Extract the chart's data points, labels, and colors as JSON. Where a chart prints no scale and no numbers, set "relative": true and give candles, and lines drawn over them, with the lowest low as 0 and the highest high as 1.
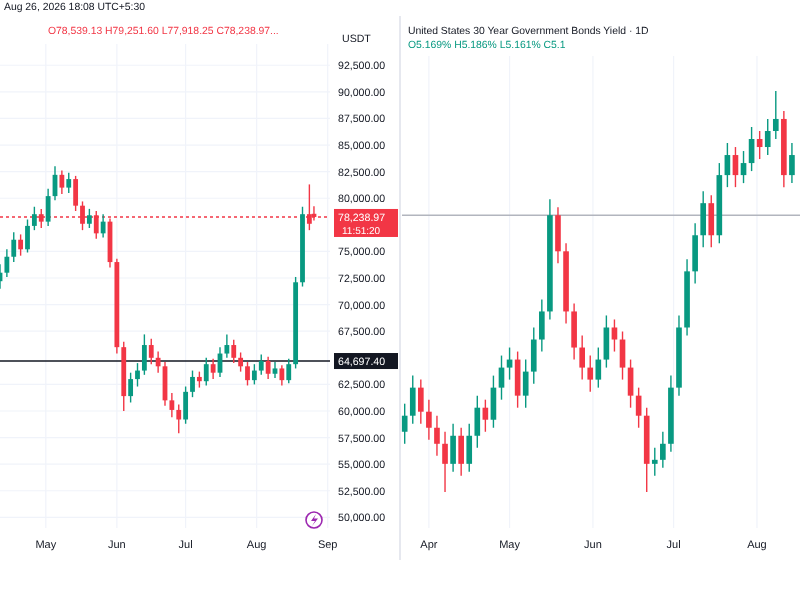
{
  "chart_data": [
    {
      "type": "candlestick",
      "subtitle": "O78,539.13 H79,251.60 L77,918.25 C78,238.97...",
      "ylabel": "USDT",
      "annotations": [
        "Aug 26, 2026 18:08 UTC+5:30",
        "11:51:20"
      ],
      "x": [
        "2026-04-11",
        "2026-04-14",
        "2026-04-17",
        "2026-04-20",
        "2026-04-23",
        "2026-04-26",
        "2026-04-29",
        "2026-05-02",
        "2026-05-05",
        "2026-05-08",
        "2026-05-11",
        "2026-05-14",
        "2026-05-17",
        "2026-05-20",
        "2026-05-23",
        "2026-05-26",
        "2026-05-29",
        "2026-06-01",
        "2026-06-04",
        "2026-06-07",
        "2026-06-10",
        "2026-06-13",
        "2026-06-16",
        "2026-06-19",
        "2026-06-22",
        "2026-06-25",
        "2026-06-28",
        "2026-07-01",
        "2026-07-04",
        "2026-07-07",
        "2026-07-10",
        "2026-07-13",
        "2026-07-16",
        "2026-07-19",
        "2026-07-22",
        "2026-07-25",
        "2026-07-28",
        "2026-07-31",
        "2026-08-03",
        "2026-08-06",
        "2026-08-09",
        "2026-08-12",
        "2026-08-15",
        "2026-08-18",
        "2026-08-21",
        "2026-08-24",
        "2026-08-26"
      ],
      "ohlc": [
        [
          72200,
          73800,
          71500,
          73000
        ],
        [
          73000,
          75200,
          72600,
          74500
        ],
        [
          74500,
          76800,
          74000,
          76100
        ],
        [
          76100,
          76600,
          74600,
          75200
        ],
        [
          75200,
          78000,
          74900,
          77400
        ],
        [
          77400,
          79200,
          77000,
          78500
        ],
        [
          78500,
          79000,
          77200,
          77800
        ],
        [
          77800,
          80900,
          77400,
          80200
        ],
        [
          80200,
          83000,
          79800,
          82200
        ],
        [
          82200,
          82600,
          80400,
          81000
        ],
        [
          81000,
          82400,
          80500,
          81800
        ],
        [
          81800,
          82100,
          78800,
          79300
        ],
        [
          79300,
          79700,
          77000,
          77600
        ],
        [
          77600,
          79000,
          77200,
          78400
        ],
        [
          78400,
          78800,
          76200,
          76700
        ],
        [
          76700,
          78500,
          76300,
          77800
        ],
        [
          77800,
          78100,
          73500,
          74000
        ],
        [
          74000,
          74300,
          65400,
          66000
        ],
        [
          66000,
          66500,
          60000,
          61400
        ],
        [
          61400,
          63600,
          60800,
          63000
        ],
        [
          63000,
          64500,
          62300,
          63800
        ],
        [
          63800,
          67200,
          63400,
          66200
        ],
        [
          66200,
          66800,
          64400,
          65000
        ],
        [
          65000,
          65600,
          63600,
          64200
        ],
        [
          64200,
          64600,
          60500,
          61000
        ],
        [
          61000,
          61700,
          59400,
          60100
        ],
        [
          60100,
          60600,
          57900,
          59200
        ],
        [
          59200,
          62300,
          58800,
          61800
        ],
        [
          61800,
          63800,
          61300,
          63200
        ],
        [
          63200,
          63700,
          62200,
          62800
        ],
        [
          62800,
          65000,
          62400,
          64400
        ],
        [
          64400,
          64900,
          63000,
          63600
        ],
        [
          63600,
          66000,
          63200,
          65400
        ],
        [
          65400,
          67200,
          65000,
          66200
        ],
        [
          66200,
          66700,
          64500,
          65000
        ],
        [
          65000,
          65500,
          63700,
          64200
        ],
        [
          64200,
          64600,
          62400,
          62900
        ],
        [
          62900,
          64400,
          62500,
          63800
        ],
        [
          63800,
          65300,
          63400,
          64700
        ],
        [
          64700,
          65100,
          63000,
          63500
        ],
        [
          63500,
          64600,
          63100,
          64000
        ],
        [
          64000,
          64300,
          62400,
          62900
        ],
        [
          62900,
          64900,
          62600,
          64400
        ],
        [
          64400,
          72600,
          64000,
          72100
        ],
        [
          72100,
          79200,
          71700,
          78500
        ],
        [
          78500,
          81300,
          77000,
          77600
        ],
        [
          78539.13,
          79251.6,
          77918.25,
          78238.97
        ]
      ],
      "xlim": [
        "2026-04-11",
        "2026-09-02"
      ],
      "xticks": [
        {
          "value": "2026-05-01",
          "label": "May"
        },
        {
          "value": "2026-06-01",
          "label": "Jun"
        },
        {
          "value": "2026-07-01",
          "label": "Jul"
        },
        {
          "value": "2026-08-01",
          "label": "Aug"
        },
        {
          "value": "2026-09-01",
          "label": "Sep"
        }
      ],
      "ylim": [
        49000,
        94500
      ],
      "yticks": [
        {
          "value": 50000,
          "label": "50,000.00"
        },
        {
          "value": 52500,
          "label": "52,500.00"
        },
        {
          "value": 55000,
          "label": "55,000.00"
        },
        {
          "value": 57500,
          "label": "57,500.00"
        },
        {
          "value": 60000,
          "label": "60,000.00"
        },
        {
          "value": 62500,
          "label": "62,500.00"
        },
        {
          "value": 67500,
          "label": "67,500.00"
        },
        {
          "value": 70000,
          "label": "70,000.00"
        },
        {
          "value": 72500,
          "label": "72,500.00"
        },
        {
          "value": 75000,
          "label": "75,000.00"
        },
        {
          "value": 80000,
          "label": "80,000.00"
        },
        {
          "value": 82500,
          "label": "82,500.00"
        },
        {
          "value": 85000,
          "label": "85,000.00"
        },
        {
          "value": 87500,
          "label": "87,500.00"
        },
        {
          "value": 90000,
          "label": "90,000.00"
        },
        {
          "value": 92500,
          "label": "92,500.00"
        }
      ],
      "grid": true,
      "ref_lines": [
        {
          "axis": "y",
          "value": 78238.97,
          "label": "78,238.97",
          "color": "#f23645",
          "line_style": "dotted"
        },
        {
          "axis": "y",
          "value": 64697.4,
          "label": "64,697.40",
          "color": "#131722",
          "line_style": "solid"
        }
      ]
    },
    {
      "type": "candlestick",
      "relative": true,
      "title": "United States 30 Year Government Bonds Yield · 1D",
      "subtitle": "O5.169% H5.186% L5.161% C5.1",
      "x": [
        "2026-03-23",
        "2026-03-26",
        "2026-03-29",
        "2026-04-01",
        "2026-04-04",
        "2026-04-07",
        "2026-04-10",
        "2026-04-13",
        "2026-04-16",
        "2026-04-19",
        "2026-04-22",
        "2026-04-25",
        "2026-04-28",
        "2026-05-01",
        "2026-05-04",
        "2026-05-07",
        "2026-05-10",
        "2026-05-13",
        "2026-05-16",
        "2026-05-19",
        "2026-05-22",
        "2026-05-25",
        "2026-05-28",
        "2026-05-31",
        "2026-06-03",
        "2026-06-06",
        "2026-06-09",
        "2026-06-12",
        "2026-06-15",
        "2026-06-18",
        "2026-06-21",
        "2026-06-24",
        "2026-06-27",
        "2026-06-30",
        "2026-07-03",
        "2026-07-06",
        "2026-07-09",
        "2026-07-12",
        "2026-07-15",
        "2026-07-18",
        "2026-07-21",
        "2026-07-24",
        "2026-07-27",
        "2026-07-30",
        "2026-08-02",
        "2026-08-05",
        "2026-08-08",
        "2026-08-11",
        "2026-08-14"
      ],
      "ohlc": [
        [
          0.15,
          0.22,
          0.12,
          0.19
        ],
        [
          0.19,
          0.29,
          0.17,
          0.26
        ],
        [
          0.26,
          0.28,
          0.17,
          0.2
        ],
        [
          0.2,
          0.23,
          0.13,
          0.16
        ],
        [
          0.16,
          0.19,
          0.09,
          0.12
        ],
        [
          0.12,
          0.15,
          0.0,
          0.07
        ],
        [
          0.07,
          0.17,
          0.05,
          0.14
        ],
        [
          0.14,
          0.16,
          0.04,
          0.07
        ],
        [
          0.07,
          0.17,
          0.05,
          0.14
        ],
        [
          0.14,
          0.24,
          0.11,
          0.21
        ],
        [
          0.21,
          0.23,
          0.15,
          0.18
        ],
        [
          0.18,
          0.29,
          0.16,
          0.26
        ],
        [
          0.26,
          0.34,
          0.23,
          0.31
        ],
        [
          0.31,
          0.36,
          0.28,
          0.33
        ],
        [
          0.33,
          0.35,
          0.21,
          0.24
        ],
        [
          0.24,
          0.33,
          0.21,
          0.3
        ],
        [
          0.3,
          0.41,
          0.27,
          0.38
        ],
        [
          0.38,
          0.48,
          0.35,
          0.45
        ],
        [
          0.45,
          0.73,
          0.43,
          0.69
        ],
        [
          0.69,
          0.71,
          0.57,
          0.6
        ],
        [
          0.6,
          0.62,
          0.42,
          0.45
        ],
        [
          0.45,
          0.47,
          0.33,
          0.36
        ],
        [
          0.36,
          0.39,
          0.28,
          0.31
        ],
        [
          0.31,
          0.34,
          0.25,
          0.28
        ],
        [
          0.28,
          0.36,
          0.26,
          0.33
        ],
        [
          0.33,
          0.44,
          0.31,
          0.41
        ],
        [
          0.41,
          0.43,
          0.35,
          0.38
        ],
        [
          0.38,
          0.4,
          0.28,
          0.31
        ],
        [
          0.31,
          0.33,
          0.21,
          0.24
        ],
        [
          0.24,
          0.26,
          0.16,
          0.19
        ],
        [
          0.19,
          0.21,
          0.0,
          0.07
        ],
        [
          0.07,
          0.11,
          0.04,
          0.08
        ],
        [
          0.08,
          0.15,
          0.06,
          0.12
        ],
        [
          0.12,
          0.29,
          0.1,
          0.26
        ],
        [
          0.26,
          0.44,
          0.24,
          0.41
        ],
        [
          0.41,
          0.58,
          0.39,
          0.55
        ],
        [
          0.55,
          0.67,
          0.52,
          0.64
        ],
        [
          0.64,
          0.75,
          0.61,
          0.72
        ],
        [
          0.72,
          0.74,
          0.61,
          0.64
        ],
        [
          0.64,
          0.82,
          0.62,
          0.79
        ],
        [
          0.79,
          0.87,
          0.76,
          0.84
        ],
        [
          0.84,
          0.86,
          0.76,
          0.79
        ],
        [
          0.79,
          0.85,
          0.77,
          0.82
        ],
        [
          0.82,
          0.91,
          0.8,
          0.88
        ],
        [
          0.88,
          0.9,
          0.83,
          0.86
        ],
        [
          0.86,
          0.93,
          0.84,
          0.9
        ],
        [
          0.9,
          1.0,
          0.88,
          0.93
        ],
        [
          0.93,
          0.95,
          0.76,
          0.79
        ],
        [
          0.79,
          0.87,
          0.77,
          0.84
        ]
      ],
      "xlim": [
        "2026-03-22",
        "2026-08-17"
      ],
      "xticks": [
        {
          "value": "2026-04-01",
          "label": "Apr"
        },
        {
          "value": "2026-05-01",
          "label": "May"
        },
        {
          "value": "2026-06-01",
          "label": "Jun"
        },
        {
          "value": "2026-07-01",
          "label": "Jul"
        },
        {
          "value": "2026-08-01",
          "label": "Aug"
        }
      ],
      "grid": true,
      "ref_lines": [
        {
          "axis": "y",
          "value": 0.69,
          "color": "#b2b5be",
          "line_style": "solid"
        }
      ]
    }
  ]
}
